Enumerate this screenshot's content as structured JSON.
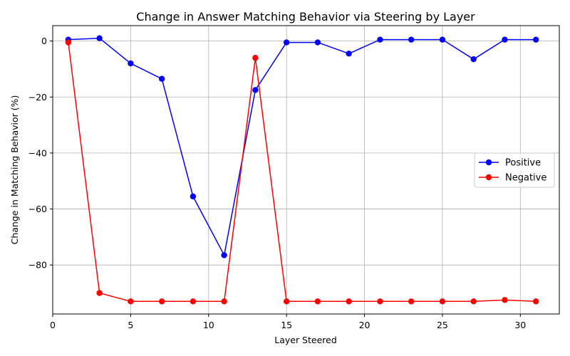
{
  "chart_data": {
    "type": "line",
    "title": "Change in Answer Matching Behavior via Steering by Layer",
    "xlabel": "Layer Steered",
    "ylabel": "Change in Matching Behavior (%)",
    "xlim": [
      0,
      32.5
    ],
    "ylim": [
      -97.5,
      5.5
    ],
    "xticks": [
      0,
      5,
      10,
      15,
      20,
      25,
      30
    ],
    "yticks": [
      0,
      -20,
      -40,
      -60,
      -80
    ],
    "grid": true,
    "legend_position": "center-right",
    "x": [
      1,
      3,
      5,
      7,
      9,
      11,
      13,
      15,
      17,
      19,
      21,
      23,
      25,
      27,
      29,
      31
    ],
    "series": [
      {
        "name": "Positive",
        "color": "#0000ff",
        "values": [
          0.5,
          1.0,
          -8.0,
          -13.5,
          -55.5,
          -76.5,
          -17.5,
          -0.5,
          -0.5,
          -4.5,
          0.5,
          0.5,
          0.5,
          -6.5,
          0.5,
          0.5
        ]
      },
      {
        "name": "Negative",
        "color": "#ff0000",
        "values": [
          -0.5,
          -90.0,
          -93.0,
          -93.0,
          -93.0,
          -93.0,
          -6.0,
          -93.0,
          -93.0,
          -93.0,
          -93.0,
          -93.0,
          -93.0,
          -93.0,
          -92.5,
          -93.0
        ]
      }
    ]
  }
}
